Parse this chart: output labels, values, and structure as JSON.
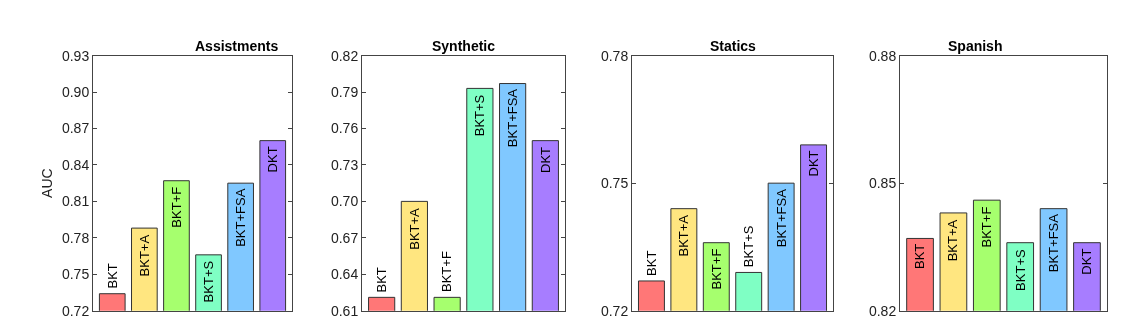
{
  "chart_data": [
    {
      "type": "bar",
      "title": "Assistments",
      "ylabel": "AUC",
      "categories": [
        "BKT",
        "BKT+A",
        "BKT+F",
        "BKT+S",
        "BKT+FSA",
        "DKT"
      ],
      "values": [
        0.734,
        0.788,
        0.827,
        0.766,
        0.825,
        0.86
      ],
      "colors": [
        "#ff7777",
        "#ffe680",
        "#a6ff6e",
        "#7fffc4",
        "#80c8ff",
        "#a77dff"
      ],
      "ylim": [
        0.72,
        0.93
      ],
      "yticks": [
        0.72,
        0.75,
        0.78,
        0.81,
        0.84,
        0.87,
        {
          "value": 0.9,
          "label": "0.90"
        },
        0.93
      ],
      "tick_labels": "y"
    },
    {
      "type": "bar",
      "title": "Synthetic",
      "categories": [
        "BKT",
        "BKT+A",
        "BKT+F",
        "BKT+S",
        "BKT+FSA",
        "DKT"
      ],
      "values": [
        0.621,
        0.7,
        0.621,
        0.793,
        0.797,
        0.75
      ],
      "colors": [
        "#ff7777",
        "#ffe680",
        "#a6ff6e",
        "#7fffc4",
        "#80c8ff",
        "#a77dff"
      ],
      "ylim": [
        0.61,
        0.82
      ],
      "yticks": [
        0.61,
        0.64,
        0.67,
        {
          "value": 0.7,
          "label": "0.70"
        },
        0.73,
        0.76,
        0.79,
        0.82
      ],
      "tick_labels": "y"
    },
    {
      "type": "bar",
      "title": "Statics",
      "categories": [
        "BKT",
        "BKT+A",
        "BKT+F",
        "BKT+S",
        "BKT+FSA",
        "DKT"
      ],
      "values": [
        0.727,
        0.744,
        0.736,
        0.729,
        0.75,
        0.759
      ],
      "colors": [
        "#ff7777",
        "#ffe680",
        "#a6ff6e",
        "#7fffc4",
        "#80c8ff",
        "#a77dff"
      ],
      "ylim": [
        0.72,
        0.78
      ],
      "yticks": [
        0.72,
        0.75,
        0.78
      ],
      "tick_labels": "y"
    },
    {
      "type": "bar",
      "title": "Spanish",
      "categories": [
        "BKT",
        "BKT+A",
        "BKT+F",
        "BKT+S",
        "BKT+FSA",
        "DKT"
      ],
      "values": [
        0.837,
        0.843,
        0.846,
        0.836,
        0.844,
        0.836
      ],
      "colors": [
        "#ff7777",
        "#ffe680",
        "#a6ff6e",
        "#7fffc4",
        "#80c8ff",
        "#a77dff"
      ],
      "ylim": [
        0.82,
        0.88
      ],
      "yticks": [
        0.82,
        0.85,
        0.88
      ],
      "tick_labels": "y"
    }
  ]
}
